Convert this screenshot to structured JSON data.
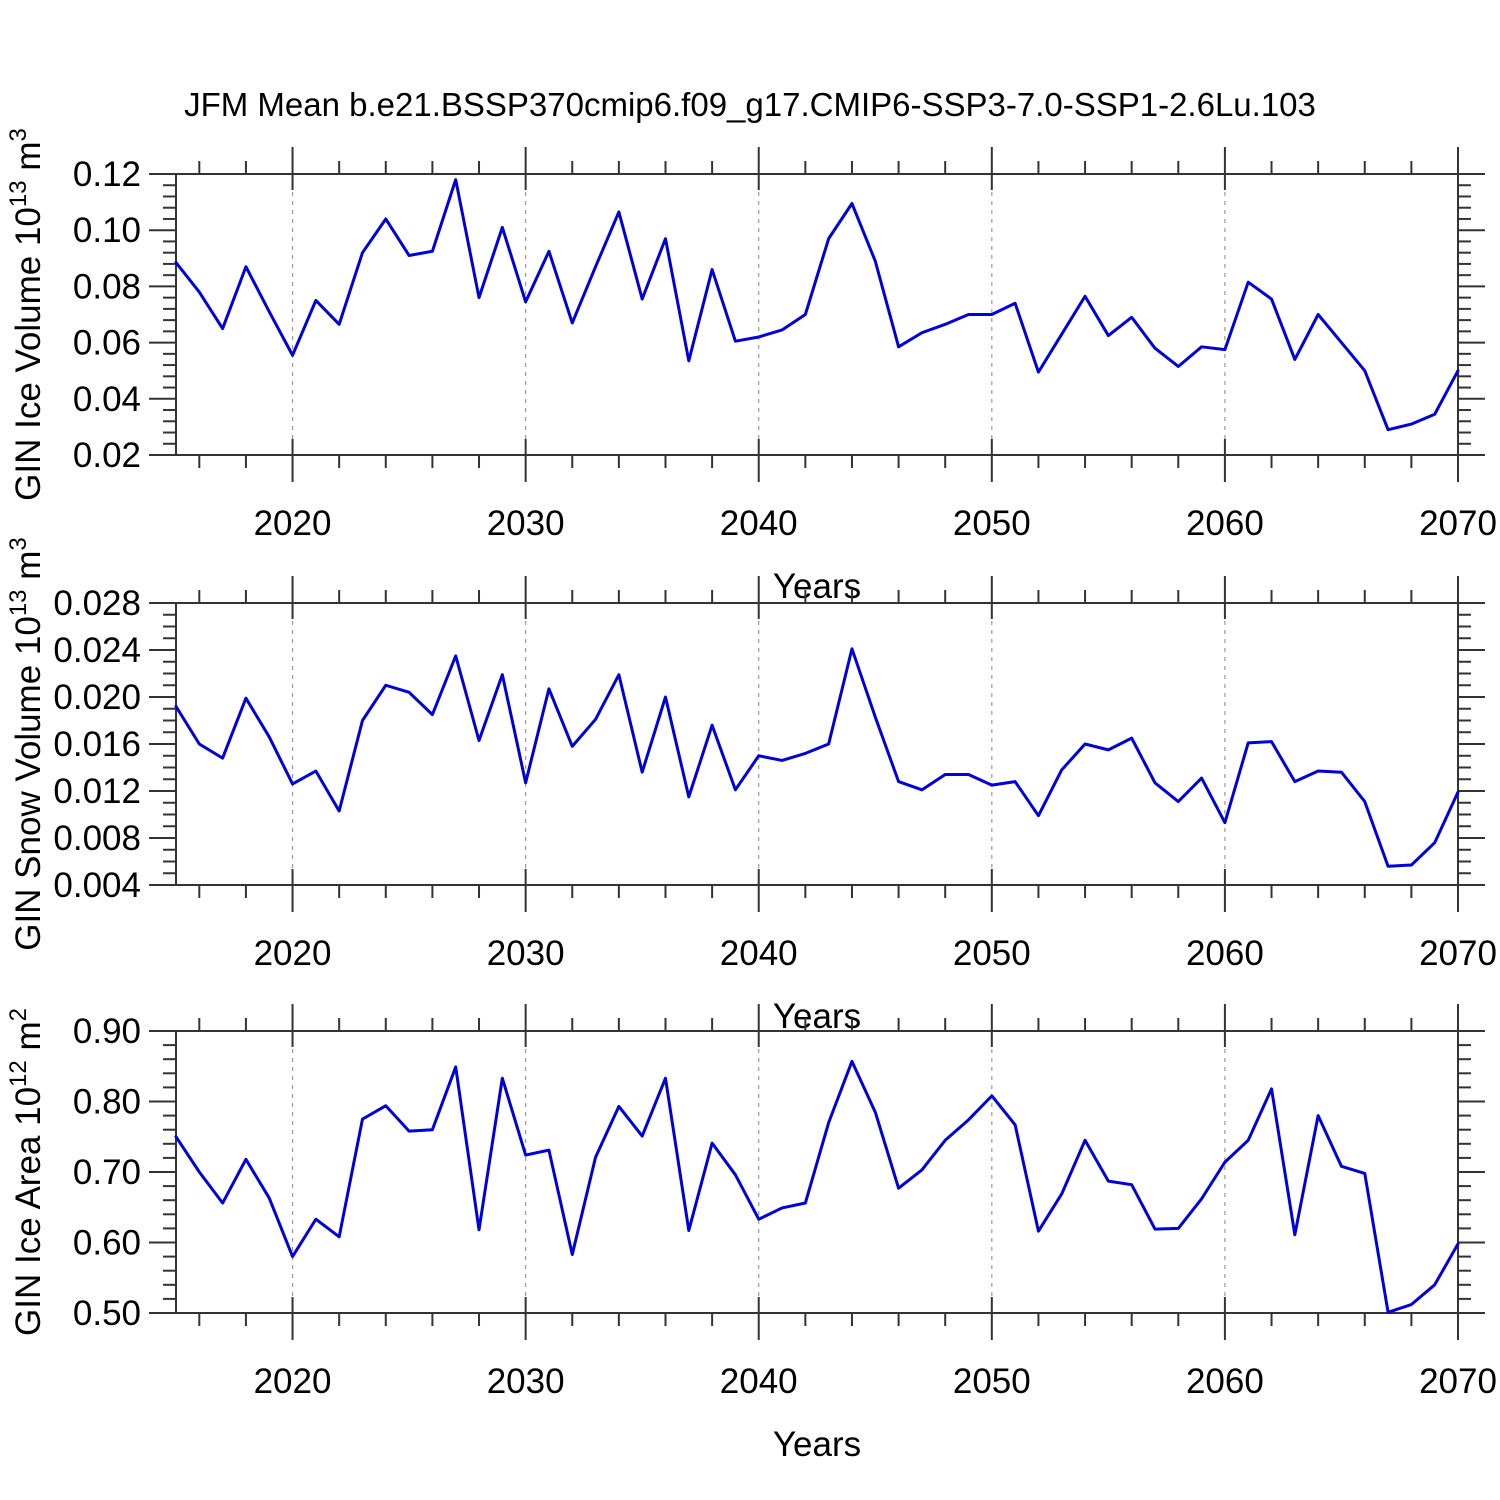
{
  "title": "JFM Mean b.e21.BSSP370cmip6.f09_g17.CMIP6-SSP3-7.0-SSP1-2.6Lu.103",
  "colors": {
    "line": "#0000dd",
    "axis": "#333333",
    "grid": "#999999",
    "text": "#000000"
  },
  "chart_data": [
    {
      "type": "line",
      "name": "gin-ice-volume",
      "ylabel": {
        "prefix": "GIN Ice Volume 10",
        "sup1": "13",
        "mid": " m",
        "sup2": "3"
      },
      "xlabel": "Years",
      "xlim": [
        2015,
        2070
      ],
      "x_start": 2015,
      "x_step": 1,
      "ylim": [
        0.02,
        0.12
      ],
      "ytick_minor_step": 0.004,
      "yticks": [
        {
          "v": 0.02,
          "label": "0.02"
        },
        {
          "v": 0.04,
          "label": "0.04"
        },
        {
          "v": 0.06,
          "label": "0.06"
        },
        {
          "v": 0.08,
          "label": "0.08"
        },
        {
          "v": 0.1,
          "label": "0.10"
        },
        {
          "v": 0.12,
          "label": "0.12"
        }
      ],
      "xticks": [
        {
          "v": 2020,
          "label": "2020"
        },
        {
          "v": 2030,
          "label": "2030"
        },
        {
          "v": 2040,
          "label": "2040"
        },
        {
          "v": 2050,
          "label": "2050"
        },
        {
          "v": 2060,
          "label": "2060"
        },
        {
          "v": 2070,
          "label": "2070"
        }
      ],
      "xtick_minor_step": 2,
      "grid_years": [
        2020,
        2030,
        2040,
        2050,
        2060
      ],
      "values": [
        0.0885,
        0.078,
        0.065,
        0.087,
        0.071,
        0.0555,
        0.075,
        0.0665,
        0.092,
        0.104,
        0.091,
        0.0925,
        0.118,
        0.076,
        0.101,
        0.0745,
        0.0925,
        0.067,
        0.087,
        0.1065,
        0.0755,
        0.097,
        0.0535,
        0.086,
        0.0605,
        0.062,
        0.0645,
        0.07,
        0.097,
        0.1095,
        0.089,
        0.0585,
        0.0635,
        0.0665,
        0.07,
        0.07,
        0.074,
        0.0495,
        0.063,
        0.0765,
        0.0625,
        0.069,
        0.058,
        0.0515,
        0.0585,
        0.0575,
        0.0815,
        0.0755,
        0.054,
        0.07,
        0.06,
        0.05,
        0.029,
        0.031,
        0.0345,
        0.05
      ]
    },
    {
      "type": "line",
      "name": "gin-snow-volume",
      "ylabel": {
        "prefix": "GIN Snow Volume 10",
        "sup1": "13",
        "mid": " m",
        "sup2": "3"
      },
      "xlabel": "Years",
      "xlim": [
        2015,
        2070
      ],
      "x_start": 2015,
      "x_step": 1,
      "ylim": [
        0.004,
        0.028
      ],
      "ytick_minor_step": 0.001,
      "yticks": [
        {
          "v": 0.004,
          "label": "0.004"
        },
        {
          "v": 0.008,
          "label": "0.008"
        },
        {
          "v": 0.012,
          "label": "0.012"
        },
        {
          "v": 0.016,
          "label": "0.016"
        },
        {
          "v": 0.02,
          "label": "0.020"
        },
        {
          "v": 0.024,
          "label": "0.024"
        },
        {
          "v": 0.028,
          "label": "0.028"
        }
      ],
      "xticks": [
        {
          "v": 2020,
          "label": "2020"
        },
        {
          "v": 2030,
          "label": "2030"
        },
        {
          "v": 2040,
          "label": "2040"
        },
        {
          "v": 2050,
          "label": "2050"
        },
        {
          "v": 2060,
          "label": "2060"
        },
        {
          "v": 2070,
          "label": "2070"
        }
      ],
      "xtick_minor_step": 2,
      "grid_years": [
        2020,
        2030,
        2040,
        2050,
        2060
      ],
      "values": [
        0.0192,
        0.016,
        0.0148,
        0.0199,
        0.0166,
        0.0126,
        0.0137,
        0.0103,
        0.018,
        0.021,
        0.0204,
        0.0185,
        0.0235,
        0.0163,
        0.0219,
        0.0127,
        0.0207,
        0.0158,
        0.0181,
        0.0219,
        0.0136,
        0.02,
        0.0115,
        0.0176,
        0.0121,
        0.015,
        0.0146,
        0.0152,
        0.016,
        0.0241,
        0.0183,
        0.0128,
        0.0121,
        0.0134,
        0.0134,
        0.0125,
        0.0128,
        0.0099,
        0.0138,
        0.016,
        0.0155,
        0.0165,
        0.0127,
        0.0111,
        0.0131,
        0.0093,
        0.0161,
        0.0162,
        0.0128,
        0.0137,
        0.0136,
        0.0111,
        0.0056,
        0.0057,
        0.0076,
        0.0119
      ]
    },
    {
      "type": "line",
      "name": "gin-ice-area",
      "ylabel": {
        "prefix": "GIN Ice Area 10",
        "sup1": "12",
        "mid": " m",
        "sup2": "2"
      },
      "xlabel": "Years",
      "xlim": [
        2015,
        2070
      ],
      "x_start": 2015,
      "x_step": 1,
      "ylim": [
        0.5,
        0.9
      ],
      "ytick_minor_step": 0.02,
      "yticks": [
        {
          "v": 0.5,
          "label": "0.50"
        },
        {
          "v": 0.6,
          "label": "0.60"
        },
        {
          "v": 0.7,
          "label": "0.70"
        },
        {
          "v": 0.8,
          "label": "0.80"
        },
        {
          "v": 0.9,
          "label": "0.90"
        }
      ],
      "xticks": [
        {
          "v": 2020,
          "label": "2020"
        },
        {
          "v": 2030,
          "label": "2030"
        },
        {
          "v": 2040,
          "label": "2040"
        },
        {
          "v": 2050,
          "label": "2050"
        },
        {
          "v": 2060,
          "label": "2060"
        },
        {
          "v": 2070,
          "label": "2070"
        }
      ],
      "xtick_minor_step": 2,
      "grid_years": [
        2020,
        2030,
        2040,
        2050,
        2060
      ],
      "values": [
        0.75,
        0.7,
        0.656,
        0.718,
        0.663,
        0.58,
        0.633,
        0.608,
        0.775,
        0.794,
        0.758,
        0.76,
        0.849,
        0.618,
        0.833,
        0.724,
        0.731,
        0.583,
        0.721,
        0.793,
        0.751,
        0.833,
        0.617,
        0.741,
        0.696,
        0.633,
        0.649,
        0.656,
        0.77,
        0.857,
        0.785,
        0.677,
        0.703,
        0.745,
        0.774,
        0.808,
        0.767,
        0.616,
        0.669,
        0.745,
        0.687,
        0.682,
        0.619,
        0.62,
        0.662,
        0.714,
        0.745,
        0.818,
        0.611,
        0.78,
        0.708,
        0.698,
        0.501,
        0.512,
        0.54,
        0.598
      ]
    }
  ]
}
